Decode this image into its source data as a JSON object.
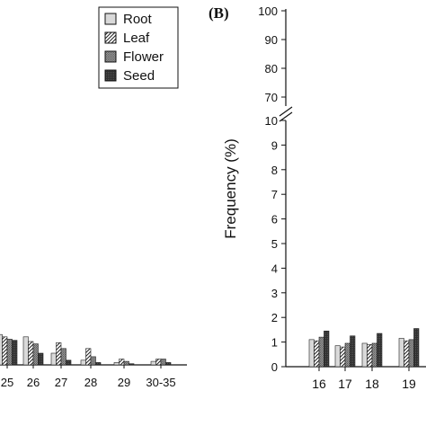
{
  "chart_data": [
    {
      "type": "bar",
      "panel": "",
      "legend": {
        "placement": "top",
        "entries": [
          "Root",
          "Leaf",
          "Flower",
          "Seed"
        ]
      },
      "categories": [
        "25",
        "26",
        "27",
        "28",
        "29",
        "30-35"
      ],
      "series": [
        {
          "name": "Root",
          "values": [
            1.3,
            1.2,
            0.5,
            0.2,
            0.1,
            0.15
          ]
        },
        {
          "name": "Leaf",
          "values": [
            1.2,
            1.0,
            0.95,
            0.7,
            0.25,
            0.25
          ]
        },
        {
          "name": "Flower",
          "values": [
            1.1,
            0.9,
            0.7,
            0.35,
            0.15,
            0.25
          ]
        },
        {
          "name": "Seed",
          "values": [
            1.05,
            0.5,
            0.2,
            0.1,
            0.05,
            0.1
          ]
        }
      ],
      "xlabel": "",
      "ylabel": ""
    },
    {
      "type": "bar",
      "panel": "(B)",
      "ylabel": "Frequency (%)",
      "xlabel": "",
      "ylim": [
        0,
        100
      ],
      "axis_break": [
        10,
        70
      ],
      "yticks_lower": [
        "0",
        "1",
        "2",
        "3",
        "4",
        "5",
        "6",
        "7",
        "8",
        "9",
        "10"
      ],
      "yticks_upper": [
        "70",
        "80",
        "90",
        "100"
      ],
      "categories": [
        "16",
        "17",
        "18",
        "19"
      ],
      "series": [
        {
          "name": "Root",
          "values": [
            1.1,
            0.85,
            0.95,
            1.15
          ]
        },
        {
          "name": "Leaf",
          "values": [
            1.05,
            0.8,
            0.9,
            1.05
          ]
        },
        {
          "name": "Flower",
          "values": [
            1.2,
            0.95,
            0.95,
            1.1
          ]
        },
        {
          "name": "Seed",
          "values": [
            1.45,
            1.25,
            1.35,
            1.55
          ]
        }
      ]
    }
  ]
}
